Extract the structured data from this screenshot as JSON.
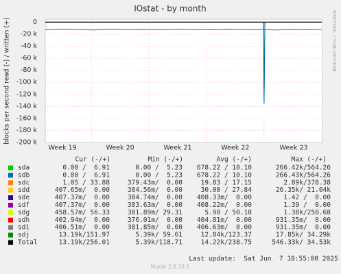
{
  "chart_data": {
    "type": "line",
    "title": "IOstat - by month",
    "y_label": "blocks per second read (-) / written (+)",
    "side_text": "RRDTOOL / TOBI OETIKER",
    "footer": "Last update:  Sat Jun  7 18:55:00 2025",
    "version": "Munin 2.0.33-1",
    "grid": true,
    "xlim": [
      0,
      33.7
    ],
    "xticks": [
      {
        "value": 2.1,
        "label": "Week 19"
      },
      {
        "value": 9.1,
        "label": "Week 20"
      },
      {
        "value": 16.1,
        "label": "Week 21"
      },
      {
        "value": 23.1,
        "label": "Week 22"
      },
      {
        "value": 30.2,
        "label": "Week 23"
      }
    ],
    "ylim": [
      -200000,
      5000
    ],
    "yticks": [
      0,
      {
        "value": -20000,
        "label": "-20 k"
      },
      {
        "value": -40000,
        "label": "-40 k"
      },
      {
        "value": -60000,
        "label": "-60 k"
      },
      {
        "value": -80000,
        "label": "-80 k"
      },
      {
        "value": -100000,
        "label": "-100 k"
      },
      {
        "value": -120000,
        "label": "-120 k"
      },
      {
        "value": -140000,
        "label": "-140 k"
      },
      {
        "value": -160000,
        "label": "-160 k"
      },
      {
        "value": -180000,
        "label": "-180 k"
      },
      {
        "value": -200000,
        "label": "-200 k"
      }
    ],
    "legend_headers": [
      "Cur (-/+)",
      "Min (-/+)",
      "Avg (-/+)",
      "Max (-/+)"
    ],
    "x": [
      0,
      2,
      4,
      6,
      8,
      10,
      12,
      14,
      16,
      18,
      20,
      22,
      24,
      26,
      26.5,
      26.6,
      26.7,
      28,
      30,
      32,
      33.6
    ],
    "series": [
      {
        "name": "sda",
        "color": "#00cc00",
        "cur": "0.00 /  6.91",
        "min": "0.00 /  5.23",
        "avg": "678.22 / 10.10",
        "max": "266.42k/564.26",
        "values": [
          0,
          0,
          0,
          0,
          0,
          0,
          0,
          0,
          0,
          0,
          0,
          0,
          0,
          0,
          0,
          -135000,
          0,
          0,
          0,
          0,
          0
        ]
      },
      {
        "name": "sdb",
        "color": "#0066b3",
        "cur": "0.00 /  6.91",
        "min": "0.00 /  5.23",
        "avg": "678.22 / 10.10",
        "max": "266.43k/564.26",
        "values": [
          0,
          0,
          0,
          0,
          0,
          0,
          0,
          0,
          0,
          0,
          0,
          0,
          0,
          0,
          0,
          -135000,
          0,
          0,
          0,
          0,
          0
        ]
      },
      {
        "name": "sdc",
        "color": "#ff8000",
        "cur": "1.05 / 33.88",
        "min": "379.43m/  0.00",
        "avg": "19.83 / 17.15",
        "max": "2.89k/378.38",
        "values": [
          0,
          0,
          0,
          0,
          0,
          0,
          0,
          0,
          0,
          0,
          0,
          0,
          0,
          0,
          0,
          0,
          0,
          0,
          0,
          0,
          0
        ]
      },
      {
        "name": "sdd",
        "color": "#ffcc00",
        "cur": "407.65m/  0.00",
        "min": "384.56m/  0.00",
        "avg": "30.00 / 27.84",
        "max": "26.35k/ 21.04k",
        "values": [
          0,
          0,
          0,
          0,
          0,
          0,
          0,
          0,
          0,
          0,
          0,
          0,
          0,
          0,
          0,
          0,
          0,
          0,
          0,
          0,
          0
        ]
      },
      {
        "name": "sde",
        "color": "#330099",
        "cur": "407.37m/  0.00",
        "min": "384.74m/  0.00",
        "avg": "408.33m/  0.00",
        "max": "1.42 /  0.00",
        "values": [
          0,
          0,
          0,
          0,
          0,
          0,
          0,
          0,
          0,
          0,
          0,
          0,
          0,
          0,
          0,
          0,
          0,
          0,
          0,
          0,
          0
        ]
      },
      {
        "name": "sdf",
        "color": "#990099",
        "cur": "407.37m/  0.00",
        "min": "383.63m/  0.00",
        "avg": "408.22m/  0.00",
        "max": "1.39 /  0.00",
        "values": [
          0,
          0,
          0,
          0,
          0,
          0,
          0,
          0,
          0,
          0,
          0,
          0,
          0,
          0,
          0,
          0,
          0,
          0,
          0,
          0,
          0
        ]
      },
      {
        "name": "sdg",
        "color": "#ccff00",
        "cur": "458.57m/ 56.33",
        "min": "381.89m/ 29.31",
        "avg": "5.90 / 50.18",
        "max": "1.38k/250.68",
        "values": [
          0,
          0,
          0,
          0,
          0,
          0,
          0,
          0,
          0,
          0,
          0,
          0,
          0,
          0,
          0,
          0,
          0,
          0,
          0,
          0,
          0
        ]
      },
      {
        "name": "sdh",
        "color": "#ff0000",
        "cur": "402.94m/  0.00",
        "min": "376.01m/  0.00",
        "avg": "404.81m/  0.00",
        "max": "931.35m/  0.00",
        "values": [
          0,
          0,
          0,
          0,
          0,
          0,
          0,
          0,
          0,
          0,
          0,
          0,
          0,
          0,
          0,
          0,
          0,
          0,
          0,
          0,
          0
        ]
      },
      {
        "name": "sdi",
        "color": "#808080",
        "cur": "406.51m/  0.00",
        "min": "381.85m/  0.00",
        "avg": "406.63m/  0.00",
        "max": "931.35m/  0.00",
        "values": [
          0,
          0,
          0,
          0,
          0,
          0,
          0,
          0,
          0,
          0,
          0,
          0,
          0,
          0,
          0,
          0,
          0,
          0,
          0,
          0,
          0
        ]
      },
      {
        "name": "sdj",
        "color": "#008f00",
        "cur": "13.19k/151.97",
        "min": "5.39k/ 59.61",
        "avg": "12.84k/123.37",
        "max": "17.85k/ 34.29k",
        "values": [
          -12500,
          -11800,
          -12200,
          -13000,
          -11900,
          -12400,
          -12100,
          -12800,
          -11700,
          -12300,
          -12600,
          -12000,
          -12200,
          -12500,
          -12100,
          -11800,
          -12400,
          -12900,
          -12200,
          -12600,
          -12000
        ]
      },
      {
        "name": "Total",
        "color": "#000000",
        "cur": "13.19k/256.01",
        "min": "5.39k/118.71",
        "avg": "14.22k/238.75",
        "max": "546.33k/ 34.53k",
        "values": [
          0,
          0,
          0,
          0,
          0,
          0,
          0,
          0,
          0,
          0,
          0,
          0,
          0,
          0,
          0,
          0,
          0,
          0,
          0,
          0,
          0
        ]
      }
    ]
  }
}
